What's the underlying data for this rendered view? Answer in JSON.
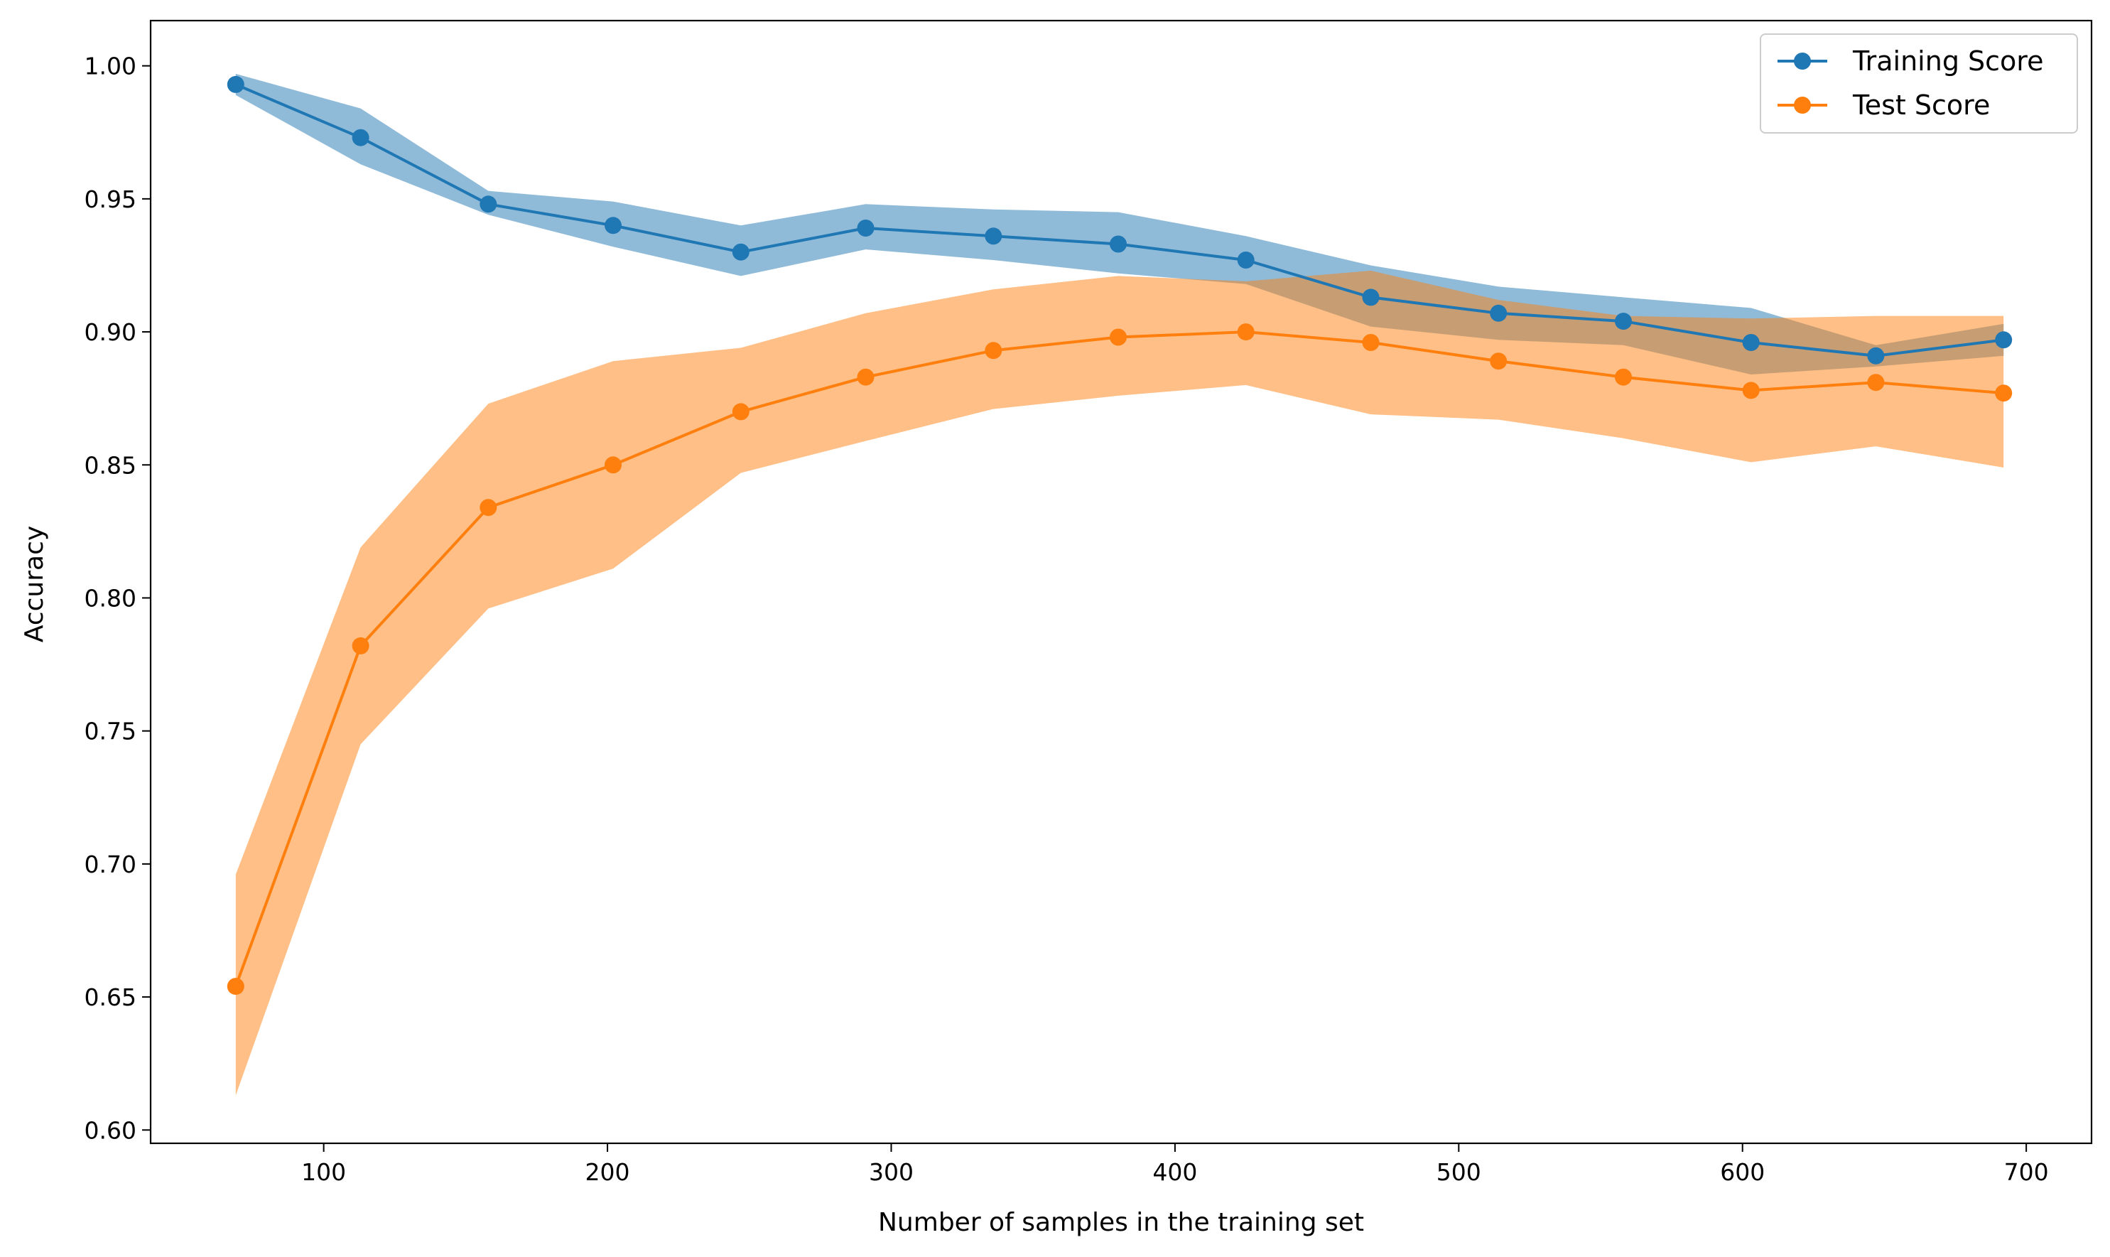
{
  "chart_data": {
    "type": "line",
    "title": "",
    "xlabel": "Number of samples in the training set",
    "ylabel": "Accuracy",
    "xlim": [
      39,
      723
    ],
    "ylim": [
      0.595,
      1.017
    ],
    "xticks": [
      100,
      200,
      300,
      400,
      500,
      600,
      700
    ],
    "yticks": [
      0.6,
      0.65,
      0.7,
      0.75,
      0.8,
      0.85,
      0.9,
      0.95,
      1.0
    ],
    "x": [
      69,
      113,
      158,
      202,
      247,
      291,
      336,
      380,
      425,
      469,
      514,
      558,
      603,
      647,
      692
    ],
    "grid": false,
    "legend_position": "top-right",
    "series": [
      {
        "name": "Training Score",
        "color": "#1f77b4",
        "band_color": "#1f77b4",
        "marker": "circle",
        "values": [
          0.993,
          0.973,
          0.948,
          0.94,
          0.93,
          0.939,
          0.936,
          0.933,
          0.927,
          0.913,
          0.907,
          0.904,
          0.896,
          0.891,
          0.897
        ],
        "lower": [
          0.989,
          0.963,
          0.944,
          0.932,
          0.921,
          0.931,
          0.927,
          0.922,
          0.918,
          0.902,
          0.897,
          0.895,
          0.884,
          0.887,
          0.891
        ],
        "upper": [
          0.997,
          0.984,
          0.953,
          0.949,
          0.94,
          0.948,
          0.946,
          0.945,
          0.936,
          0.925,
          0.917,
          0.913,
          0.909,
          0.895,
          0.903
        ]
      },
      {
        "name": "Test Score",
        "color": "#ff7f0e",
        "band_color": "#ff7f0e",
        "marker": "circle",
        "values": [
          0.654,
          0.782,
          0.834,
          0.85,
          0.87,
          0.883,
          0.893,
          0.898,
          0.9,
          0.896,
          0.889,
          0.883,
          0.878,
          0.881,
          0.877
        ],
        "lower": [
          0.613,
          0.745,
          0.796,
          0.811,
          0.847,
          0.859,
          0.871,
          0.876,
          0.88,
          0.869,
          0.867,
          0.86,
          0.851,
          0.857,
          0.849
        ],
        "upper": [
          0.696,
          0.819,
          0.873,
          0.889,
          0.894,
          0.907,
          0.916,
          0.921,
          0.919,
          0.923,
          0.912,
          0.906,
          0.905,
          0.906,
          0.906
        ]
      }
    ]
  }
}
